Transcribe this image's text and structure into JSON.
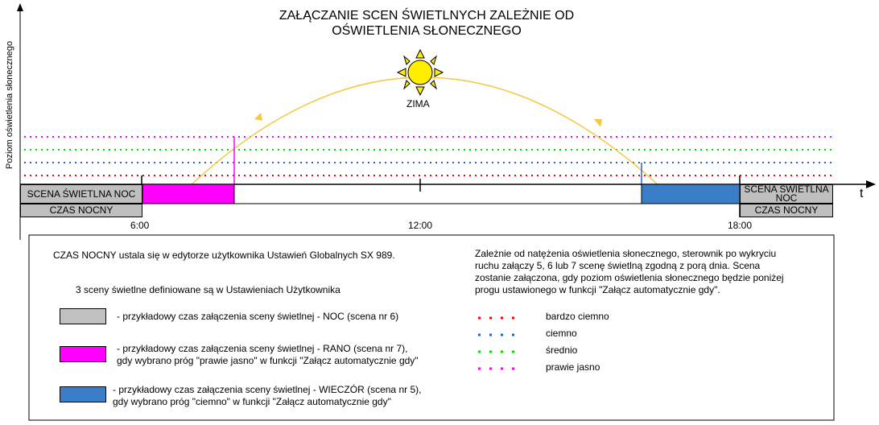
{
  "title_line1": "ZAŁĄCZANIE SCEN ŚWIETLNYCH ZALEŻNIE OD",
  "title_line2": "OŚWIETLENIA SŁONECZNEGO",
  "y_axis_label": "Poziom oświetlenia słonecznego",
  "x_axis_label": "t",
  "sun_label": "ZIMA",
  "time_ticks": [
    "6:00",
    "12:00",
    "18:00"
  ],
  "scene_left": "SCENA ŚWIETLNA NOC",
  "night_left": "CZAS NOCNY",
  "scene_right": "SCENA ŚWIETLNA NOC",
  "night_right": "CZAS NOCNY",
  "note_night": "CZAS NOCNY ustala się w edytorze użytkownika Ustawień Globalnych SX 989.",
  "note_scenes": "3 sceny świetlne definiowane są w Ustawieniach Użytkownika",
  "legend_scenes": [
    {
      "line1": "- przykładowy czas załączenia sceny świetlnej - NOC (scena nr 6)",
      "line2": "",
      "color": "#c0c0c0"
    },
    {
      "line1": "- przykładowy czas załączenia sceny świetlnej - RANO (scena nr 7),",
      "line2": "gdy  wybrano próg \"prawie jasno\" w funkcji \"Załącz automatycznie gdy\"",
      "color": "#ff00ff"
    },
    {
      "line1": "- przykładowy czas załączenia sceny świetlnej - WIECZÓR (scena nr 5),",
      "line2": "gdy  wybrano próg \"ciemno\" w funkcji \"Załącz automatycznie gdy\"",
      "color": "#3a7ec8"
    }
  ],
  "description": [
    "Zależnie od natężenia oświetlenia słonecznego, sterownik po wykryciu",
    "ruchu załączy 5, 6 lub 7 scenę świetlną zgodną z porą dnia. Scena",
    "zostanie załączona, gdy poziom oświetlenia słonecznego będzie poniżej",
    "progu ustawionego w funkcji \"Załącz automatycznie gdy\"."
  ],
  "thresholds": [
    {
      "label": "bardzo ciemno",
      "color": "#ff0000"
    },
    {
      "label": "ciemno",
      "color": "#2a5fd6"
    },
    {
      "label": "średnio",
      "color": "#00dd00"
    },
    {
      "label": "prawie jasno",
      "color": "#ff00ff"
    }
  ],
  "colors": {
    "sun": "#ffee00",
    "arc": "#f5c842",
    "night": "#c0c0c0",
    "morning": "#ff00ff",
    "evening": "#3a7ec8"
  }
}
